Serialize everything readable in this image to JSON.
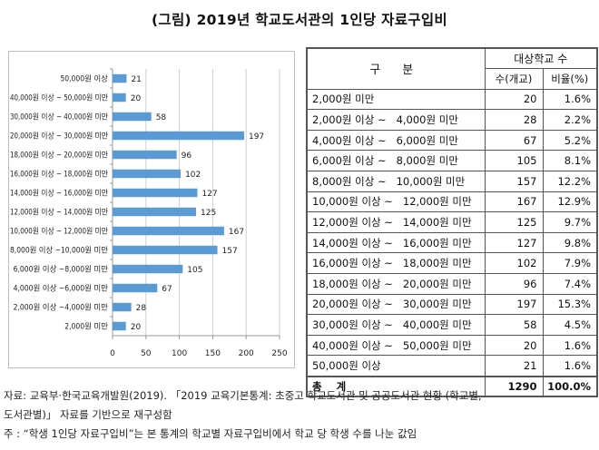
{
  "title": "(그림) 2019년 학교도서관의 1인당 자료구입비",
  "chart_data": {
    "type": "bar",
    "orientation": "horizontal",
    "categories": [
      "2,000원 미만",
      "2,000원 이상 ~4,000원 미만",
      "4,000원 이상 ~6,000원 미만",
      "6,000원 이상 ~8,000원 미만",
      "8,000원 이상 ~10,000원 미만",
      "10,000원 이상 ~ 12,000원 미만",
      "12,000원 이상 ~ 14,000원 미만",
      "14,000원 이상 ~ 16,000원 미만",
      "16,000원 이상 ~ 18,000원 미만",
      "18,000원 이상 ~ 20,000원 미만",
      "20,000원 이상 ~ 30,000원 미만",
      "30,000원 이상 ~ 40,000원 미만",
      "40,000원 이상 ~ 50,000원 미만",
      "50,000원 이상"
    ],
    "values": [
      20,
      28,
      67,
      105,
      157,
      167,
      125,
      127,
      102,
      96,
      197,
      58,
      20,
      21
    ],
    "xlim": [
      0,
      250
    ],
    "xticks": [
      "0",
      "50",
      "100",
      "150",
      "200",
      "250"
    ],
    "grid": "vertical",
    "bar_color": "#5b9bd5",
    "legend": "none",
    "title": "",
    "xlabel": "",
    "ylabel": ""
  },
  "table": {
    "header_main": "구 분",
    "header_group": "대상학교 수",
    "header_count": "수(개교)",
    "header_ratio": "비율(%)",
    "rows": [
      {
        "category": "2,000원 미만",
        "count": "20",
        "ratio": "1.6%"
      },
      {
        "category": "2,000원 이상 ~   4,000원 미만",
        "count": "28",
        "ratio": "2.2%"
      },
      {
        "category": "4,000원 이상 ~   6,000원 미만",
        "count": "67",
        "ratio": "5.2%"
      },
      {
        "category": "6,000원 이상 ~   8,000원 미만",
        "count": "105",
        "ratio": "8.1%"
      },
      {
        "category": "8,000원 이상 ~   10,000원 미만",
        "count": "157",
        "ratio": "12.2%"
      },
      {
        "category": "10,000원 이상 ~   12,000원 미만",
        "count": "167",
        "ratio": "12.9%"
      },
      {
        "category": "12,000원 이상 ~   14,000원 미만",
        "count": "125",
        "ratio": "9.7%"
      },
      {
        "category": "14,000원 이상 ~   16,000원 미만",
        "count": "127",
        "ratio": "9.8%"
      },
      {
        "category": "16,000원 이상 ~   18,000원 미만",
        "count": "102",
        "ratio": "7.9%"
      },
      {
        "category": "18,000원 이상 ~   20,000원 미만",
        "count": "96",
        "ratio": "7.4%"
      },
      {
        "category": "20,000원 이상 ~   30,000원 미만",
        "count": "197",
        "ratio": "15.3%"
      },
      {
        "category": "30,000원 이상 ~   40,000원 미만",
        "count": "58",
        "ratio": "4.5%"
      },
      {
        "category": "40,000원 이상 ~   50,000원 미만",
        "count": "20",
        "ratio": "1.6%"
      },
      {
        "category": "50,000원 이상",
        "count": "21",
        "ratio": "1.6%"
      }
    ],
    "total": {
      "category": "총 계",
      "count": "1290",
      "ratio": "100.0%"
    }
  },
  "notes": {
    "source_line1": "자료: 교육부·한국교육개발원(2019). 「2019 교육기본통계: 초중고 학교도서관 및 공공도서관 현황 (학교별,",
    "source_line2": "도서관별)」 자료를 기반으로 재구성함",
    "footnote": "주 : “학생 1인당 자료구입비”는 본 통계의 학교별 자료구입비에서 학교 당 학생 수를 나눈 값임"
  }
}
